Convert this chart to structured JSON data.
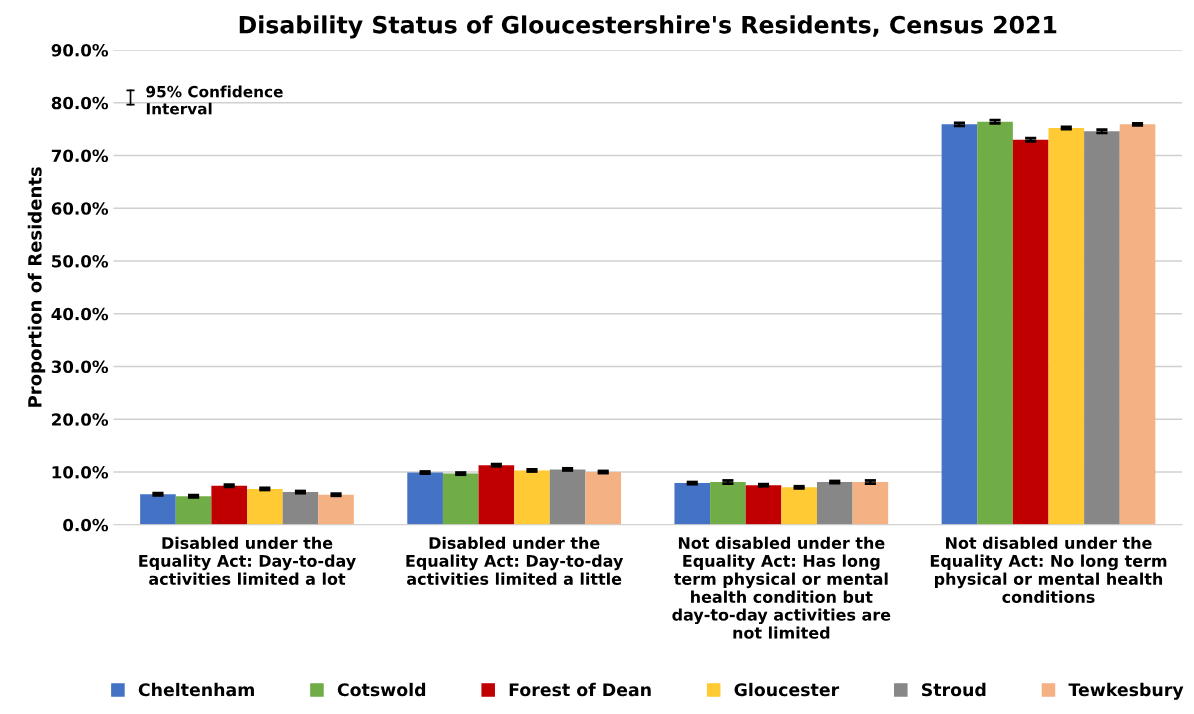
{
  "chart_data": {
    "type": "bar",
    "title": "Disability Status of Gloucestershire's Residents, Census 2021",
    "ylabel": "Proportion of Residents",
    "categories": [
      "Disabled under the Equality Act: Day-to-day activities limited a lot",
      "Disabled under the Equality Act: Day-to-day activities limited a little",
      "Not disabled under the Equality Act: Has long term physical or mental health condition but day-to-day activities are not limited",
      "Not disabled under the Equality Act: No long term physical or mental health conditions"
    ],
    "series": [
      {
        "name": "Cheltenham",
        "color": "#4472c4",
        "values": [
          5.8,
          9.9,
          7.9,
          75.9
        ],
        "errors": [
          0.2,
          0.2,
          0.2,
          0.3
        ]
      },
      {
        "name": "Cotswold",
        "color": "#70ad47",
        "values": [
          5.4,
          9.7,
          8.1,
          76.4
        ],
        "errors": [
          0.2,
          0.2,
          0.3,
          0.3
        ]
      },
      {
        "name": "Forest of Dean",
        "color": "#c00000",
        "values": [
          7.4,
          11.3,
          7.5,
          73.0
        ],
        "errors": [
          0.2,
          0.2,
          0.2,
          0.3
        ]
      },
      {
        "name": "Gloucester",
        "color": "#ffca33",
        "values": [
          6.8,
          10.3,
          7.1,
          75.2
        ],
        "errors": [
          0.2,
          0.2,
          0.2,
          0.2
        ]
      },
      {
        "name": "Stroud",
        "color": "#878787",
        "values": [
          6.2,
          10.5,
          8.1,
          74.6
        ],
        "errors": [
          0.2,
          0.2,
          0.2,
          0.3
        ]
      },
      {
        "name": "Tewkesbury",
        "color": "#f4b183",
        "values": [
          5.7,
          10.0,
          8.1,
          75.9
        ],
        "errors": [
          0.2,
          0.2,
          0.3,
          0.2
        ]
      }
    ],
    "ylim": [
      0,
      90
    ],
    "yticks": [
      {
        "value": 0,
        "label": "0.0%"
      },
      {
        "value": 10,
        "label": "10.0%"
      },
      {
        "value": 20,
        "label": "20.0%"
      },
      {
        "value": 30,
        "label": "30.0%"
      },
      {
        "value": 40,
        "label": "40.0%"
      },
      {
        "value": 50,
        "label": "50.0%"
      },
      {
        "value": 60,
        "label": "60.0%"
      },
      {
        "value": 70,
        "label": "70.0%"
      },
      {
        "value": 80,
        "label": "80.0%"
      },
      {
        "value": 90,
        "label": "90.0%"
      }
    ],
    "annotations": [
      "95% Confidence Interval"
    ],
    "grid": "y",
    "legend": "bottom"
  }
}
